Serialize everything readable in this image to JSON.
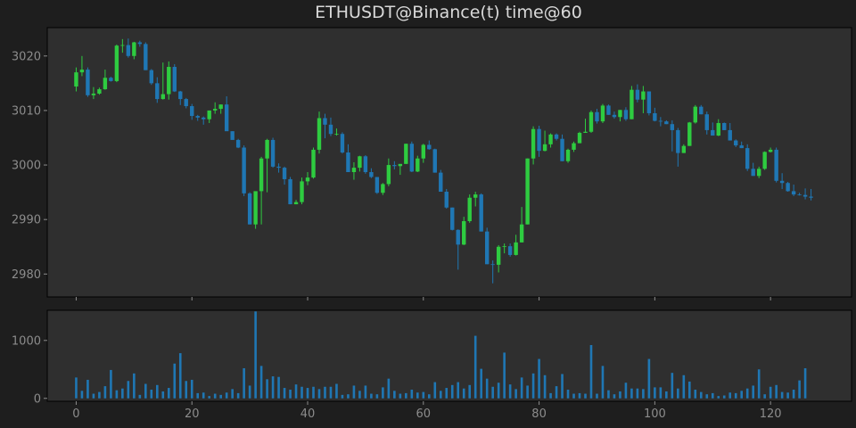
{
  "chart_data": {
    "type": "candlestick",
    "title": "ETHUSDT@Binance(t) time@60",
    "x_ticks": [
      0,
      20,
      40,
      60,
      80,
      100,
      120
    ],
    "price_ticks": [
      2980,
      2990,
      3000,
      3010,
      3020
    ],
    "volume_ticks": [
      0,
      1000
    ],
    "xlim": [
      -5,
      134
    ],
    "price_ylim": [
      2975.8,
      3025.2
    ],
    "volume_ylim": [
      -50,
      1520
    ],
    "colors": {
      "up": "#2ecc40",
      "down": "#1f77b4",
      "volume": "#1f77b4"
    },
    "candles": {
      "open": [
        3014.4,
        3017.0,
        3017.5,
        3012.8,
        3013.1,
        3013.9,
        3016.0,
        3015.4,
        3021.9,
        3022.0,
        3020.0,
        3022.5,
        3022.2,
        3017.4,
        3015.0,
        3012.1,
        3013.0,
        3018.0,
        3013.5,
        3012.1,
        3010.8,
        3009.0,
        3008.7,
        3008.4,
        3010.0,
        3010.3,
        3011.1,
        3006.2,
        3004.6,
        3003.2,
        2994.8,
        2989.1,
        2995.2,
        3001.2,
        3004.6,
        2999.7,
        2999.5,
        2997.4,
        2992.8,
        2993.2,
        2997.0,
        2997.7,
        3002.8,
        3008.6,
        3007.4,
        3005.7,
        3005.7,
        3002.3,
        2998.7,
        2999.5,
        3001.6,
        2998.7,
        2997.8,
        2994.9,
        2996.5,
        3000.0,
        2999.8,
        3000.2,
        3003.9,
        2998.8,
        3001.2,
        3003.7,
        3002.9,
        2998.6,
        2995.1,
        2992.2,
        2988.1,
        2985.4,
        2989.7,
        2994.0,
        2994.6,
        2987.8,
        2981.8,
        2981.7,
        2985.0,
        2985.1,
        2983.5,
        2985.8,
        2989.1,
        3001.2,
        3006.6,
        3002.6,
        3003.8,
        3005.6,
        3004.8,
        3000.7,
        3002.8,
        3004.0,
        3005.9,
        3006.1,
        3009.7,
        3008.0,
        3010.9,
        3009.2,
        3008.8,
        3010.1,
        3008.4,
        3013.8,
        3012.0,
        3013.5,
        3009.5,
        3008.1,
        3008.0,
        3007.5,
        3006.4,
        3002.2,
        3003.5,
        3007.8,
        3010.7,
        3009.3,
        3006.4,
        3005.4,
        3007.7,
        3006.4,
        3004.5,
        3003.6,
        3003.1,
        2999.3,
        2998.0,
        2999.3,
        3002.4,
        3002.8,
        2997.1,
        2996.7,
        2995.2,
        2994.6,
        2994.5,
        2994.2
      ],
      "high": [
        3017.9,
        3020.0,
        3017.9,
        3014.3,
        3014.2,
        3017.5,
        3016.2,
        3022.1,
        3023.1,
        3023.2,
        3022.6,
        3022.8,
        3022.5,
        3017.6,
        3016.1,
        3018.8,
        3019.0,
        3018.5,
        3013.6,
        3012.3,
        3011.2,
        3009.2,
        3008.9,
        3010.0,
        3011.5,
        3011.1,
        3012.6,
        3006.2,
        3004.8,
        3003.6,
        2995.0,
        2995.0,
        3001.5,
        3004.8,
        3005.0,
        3000.3,
        2999.7,
        2997.8,
        2993.6,
        2997.7,
        2998.7,
        3003.2,
        3009.8,
        3009.4,
        3008.7,
        3006.7,
        3006.0,
        3003.8,
        3000.5,
        3001.7,
        3001.8,
        2999.4,
        2997.8,
        2996.7,
        3001.2,
        3000.7,
        3000.2,
        3003.9,
        3004.3,
        3001.7,
        3003.9,
        3004.5,
        3003.0,
        2999.1,
        2995.6,
        2992.2,
        2988.2,
        2990.5,
        2994.6,
        2995.1,
        2994.8,
        2988.5,
        2982.5,
        2985.3,
        2985.6,
        2985.6,
        2987.2,
        2992.3,
        3001.2,
        3007.1,
        3007.2,
        3006.3,
        3005.8,
        3005.8,
        3005.6,
        3003.0,
        3004.3,
        3006.1,
        3008.5,
        3010.0,
        3010.3,
        3011.2,
        3011.1,
        3009.8,
        3010.1,
        3010.6,
        3014.5,
        3014.8,
        3014.5,
        3013.5,
        3010.5,
        3008.8,
        3008.2,
        3008.2,
        3006.8,
        3003.8,
        3007.9,
        3011.0,
        3011.0,
        3009.8,
        3007.8,
        3008.4,
        3007.8,
        3007.7,
        3004.7,
        3004.3,
        3003.8,
        3000.4,
        2999.7,
        3002.5,
        3003.2,
        3003.2,
        2998.5,
        2996.9,
        2996.4,
        2994.9,
        2995.7,
        2995.6
      ],
      "low": [
        3013.5,
        3016.3,
        3012.5,
        3012.1,
        3012.9,
        3013.8,
        3015.3,
        3015.2,
        3020.6,
        3019.7,
        3019.4,
        3021.7,
        3017.4,
        3014.7,
        3011.4,
        3012.0,
        3012.0,
        3013.4,
        3011.0,
        3010.4,
        3008.3,
        3008.1,
        3007.4,
        3007.7,
        3009.4,
        3009.4,
        3010.6,
        3004.7,
        3003.1,
        2994.3,
        2989.1,
        2988.3,
        2989.1,
        2995.0,
        2999.5,
        2998.6,
        2996.4,
        2992.8,
        2992.8,
        2992.8,
        2996.3,
        2997.5,
        3002.1,
        3004.9,
        3005.3,
        3005.4,
        3002.1,
        2998.7,
        2997.3,
        2998.8,
        2998.4,
        2997.6,
        2994.7,
        2994.5,
        2996.1,
        2999.2,
        2998.2,
        3000.2,
        2998.7,
        2998.7,
        3000.4,
        3002.8,
        2998.6,
        2995.2,
        2992.0,
        2988.0,
        2980.8,
        2985.3,
        2989.4,
        2992.4,
        2987.8,
        2981.8,
        2978.3,
        2980.3,
        2983.8,
        2983.2,
        2983.4,
        2985.8,
        2989.1,
        3000.1,
        3001.5,
        3002.5,
        3003.2,
        3004.5,
        3000.7,
        3000.4,
        3002.4,
        3004.0,
        3005.9,
        3005.9,
        3007.6,
        3007.7,
        3009.2,
        3008.5,
        3008.0,
        3008.1,
        3008.4,
        3011.5,
        3009.5,
        3009.1,
        3008.0,
        3007.1,
        3007.5,
        3002.5,
        2999.7,
        3002.2,
        3003.5,
        3007.6,
        3009.3,
        3005.6,
        3005.4,
        3005.3,
        3006.4,
        3004.5,
        3003.3,
        3003.1,
        2998.9,
        2998.0,
        2997.6,
        2999.1,
        3002.3,
        2996.8,
        2995.6,
        2995.1,
        2994.3,
        2994.4,
        2993.7,
        2993.5
      ],
      "close": [
        3017.0,
        3017.5,
        3012.8,
        3013.1,
        3013.9,
        3016.0,
        3015.4,
        3021.9,
        3022.0,
        3020.0,
        3022.5,
        3022.2,
        3017.4,
        3015.0,
        3012.1,
        3013.0,
        3018.0,
        3013.5,
        3012.1,
        3010.8,
        3009.0,
        3008.7,
        3008.4,
        3010.0,
        3010.3,
        3011.1,
        3006.2,
        3004.6,
        3003.2,
        2994.8,
        2989.1,
        2995.2,
        3001.2,
        3004.6,
        2999.7,
        2999.5,
        2997.4,
        2992.8,
        2993.2,
        2997.0,
        2997.7,
        3002.8,
        3008.6,
        3007.4,
        3005.7,
        3005.7,
        3002.3,
        2998.7,
        2999.5,
        3001.6,
        2998.7,
        2997.8,
        2994.9,
        2996.5,
        3000.0,
        2999.8,
        3000.2,
        3003.9,
        2998.8,
        3001.2,
        3003.7,
        3002.9,
        2998.6,
        2995.1,
        2992.2,
        2988.1,
        2985.4,
        2989.7,
        2994.0,
        2994.6,
        2987.8,
        2981.8,
        2981.7,
        2985.0,
        2985.1,
        2983.5,
        2985.8,
        2989.1,
        3001.2,
        3006.6,
        3002.6,
        3003.8,
        3005.6,
        3004.8,
        3000.7,
        3002.8,
        3004.0,
        3005.9,
        3006.1,
        3009.7,
        3008.0,
        3010.9,
        3009.2,
        3008.8,
        3010.1,
        3008.4,
        3013.8,
        3012.0,
        3013.5,
        3009.5,
        3008.1,
        3008.0,
        3007.5,
        3006.4,
        3002.2,
        3003.5,
        3007.8,
        3010.7,
        3009.3,
        3006.4,
        3005.4,
        3007.7,
        3006.4,
        3004.5,
        3003.6,
        3003.1,
        2999.3,
        2998.0,
        2999.3,
        3002.4,
        3002.8,
        2997.1,
        2996.7,
        2995.2,
        2994.6,
        2994.5,
        2994.2,
        2994.0
      ]
    },
    "volume": [
      360,
      130,
      320,
      80,
      110,
      210,
      490,
      140,
      170,
      300,
      430,
      60,
      250,
      150,
      230,
      120,
      180,
      600,
      780,
      300,
      320,
      90,
      100,
      40,
      80,
      60,
      100,
      160,
      90,
      520,
      220,
      1500,
      560,
      330,
      380,
      370,
      180,
      150,
      240,
      200,
      180,
      200,
      160,
      200,
      200,
      250,
      60,
      70,
      220,
      130,
      220,
      80,
      70,
      190,
      340,
      130,
      80,
      90,
      150,
      100,
      110,
      70,
      280,
      130,
      180,
      230,
      280,
      170,
      230,
      1080,
      510,
      340,
      200,
      270,
      790,
      240,
      160,
      360,
      220,
      430,
      680,
      400,
      90,
      210,
      420,
      150,
      80,
      90,
      80,
      920,
      80,
      560,
      140,
      70,
      120,
      270,
      170,
      170,
      160,
      680,
      190,
      190,
      120,
      440,
      170,
      400,
      290,
      150,
      110,
      70,
      90,
      40,
      50,
      100,
      90,
      130,
      170,
      220,
      500,
      70,
      200,
      230,
      110,
      100,
      150,
      310,
      520
    ]
  }
}
